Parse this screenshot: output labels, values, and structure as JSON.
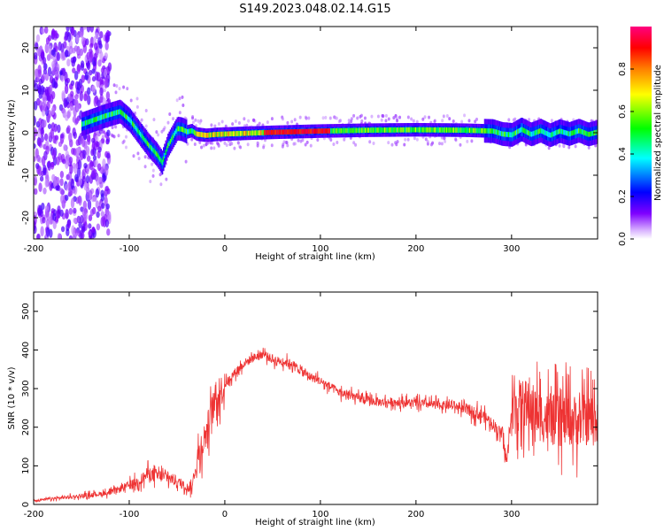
{
  "title": "S149.2023.048.02.14.G15",
  "chart_data": [
    {
      "type": "heatmap",
      "xlabel": "Height of straight line (km)",
      "ylabel": "Frequency (Hz)",
      "xlim": [
        -200,
        390
      ],
      "ylim": [
        -25,
        25
      ],
      "xticks": [
        -200,
        -100,
        0,
        100,
        200,
        300
      ],
      "yticks": [
        -20,
        -10,
        0,
        10,
        20
      ],
      "colorbar": {
        "label": "Normalized spectral amplitude",
        "range": [
          0,
          1
        ],
        "ticks": [
          "0.0",
          "0.2",
          "0.4",
          "0.6",
          "0.8"
        ],
        "colormap": "gist_rainbow_r",
        "colors": [
          "#ffffff",
          "#7f00ff",
          "#0000ff",
          "#00ffff",
          "#00ff00",
          "#ffff00",
          "#ff8000",
          "#ff0000",
          "#ff0080"
        ]
      },
      "ridge": {
        "x": [
          -150,
          -125,
          -110,
          -100,
          -90,
          -80,
          -72,
          -66,
          -60,
          -55,
          -50,
          -45,
          -40,
          -35,
          -30,
          -20,
          -10,
          0,
          50,
          100,
          150,
          200,
          250,
          280,
          290,
          300,
          310,
          320,
          330,
          340,
          350,
          360,
          370,
          380,
          390
        ],
        "frequency_hz": [
          2,
          4,
          5,
          3,
          0,
          -3,
          -5,
          -7,
          -3,
          -1,
          1,
          0.8,
          0.2,
          0.5,
          -0.3,
          -0.6,
          -0.4,
          -0.3,
          0.1,
          0.4,
          0.6,
          0.7,
          0.6,
          0.4,
          -0.3,
          -0.5,
          0.8,
          -0.4,
          0.5,
          -0.6,
          0.4,
          -0.3,
          0.5,
          -0.4,
          0.2
        ]
      }
    },
    {
      "type": "line",
      "xlabel": "Height of straight line (km)",
      "ylabel": "SNR (10 * v/v)",
      "xlim": [
        -200,
        390
      ],
      "ylim": [
        0,
        550
      ],
      "xticks": [
        -200,
        -100,
        0,
        100,
        200,
        300
      ],
      "yticks": [
        0,
        100,
        200,
        300,
        400,
        500
      ],
      "color": "#ee3333",
      "series": [
        {
          "x": [
            -200,
            -180,
            -160,
            -140,
            -120,
            -100,
            -90,
            -80,
            -70,
            -60,
            -50,
            -40,
            -35,
            -30,
            -25,
            -20,
            -15,
            -10,
            0,
            10,
            20,
            30,
            40,
            50,
            60,
            70,
            80,
            90,
            100,
            110,
            120,
            140,
            160,
            180,
            200,
            220,
            240,
            260,
            270,
            280,
            290,
            295,
            300,
            310,
            320,
            330,
            340,
            350,
            360,
            370,
            380,
            390
          ],
          "y": [
            10,
            15,
            20,
            25,
            30,
            50,
            60,
            80,
            75,
            70,
            60,
            45,
            40,
            100,
            150,
            180,
            230,
            270,
            310,
            340,
            365,
            380,
            390,
            375,
            370,
            365,
            345,
            330,
            320,
            305,
            290,
            275,
            265,
            265,
            262,
            258,
            255,
            240,
            230,
            210,
            180,
            110,
            240,
            260,
            250,
            230,
            220,
            215,
            220,
            215,
            220,
            225
          ]
        }
      ]
    }
  ]
}
